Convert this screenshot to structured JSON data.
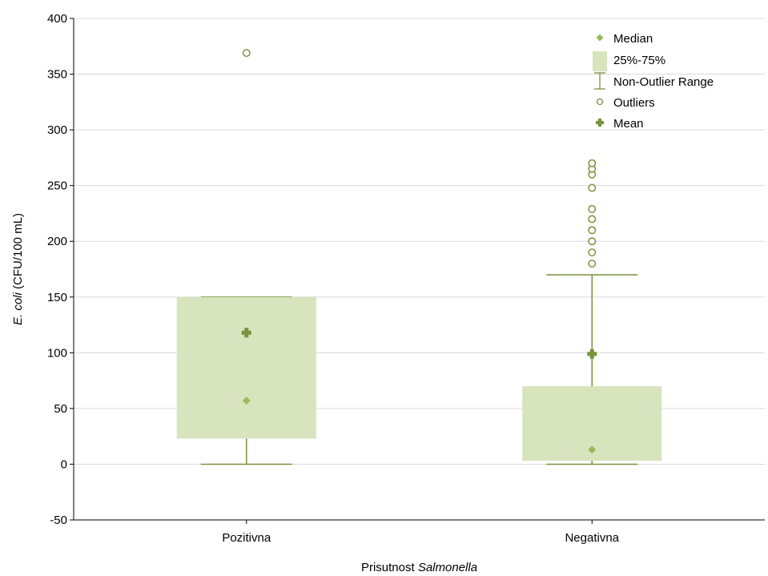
{
  "chart_data": {
    "type": "box",
    "xlabel_prefix": "Prisutnost ",
    "xlabel_italic": "Salmonella",
    "ylabel_italic": "E. coli",
    "ylabel_rest": " (CFU/100 mL)",
    "ylim": [
      -50,
      400
    ],
    "yticks": [
      -50,
      0,
      50,
      100,
      150,
      200,
      250,
      300,
      350,
      400
    ],
    "grid": true,
    "legend_position": "top-right",
    "categories": [
      "Pozitivna",
      "Negativna"
    ],
    "boxes": [
      {
        "category": "Pozitivna",
        "q1": 23,
        "q3": 150,
        "median": 57,
        "mean": 118,
        "whisker_low": 0,
        "whisker_high": 150,
        "outliers": [
          369
        ]
      },
      {
        "category": "Negativna",
        "q1": 3,
        "q3": 70,
        "median": 13,
        "mean": 99,
        "whisker_low": 0,
        "whisker_high": 170,
        "outliers": [
          180,
          190,
          200,
          210,
          220,
          229,
          248,
          260,
          265,
          270
        ]
      }
    ],
    "legend": {
      "median": "Median",
      "box": "25%-75%",
      "range": "Non-Outlier Range",
      "outliers": "Outliers",
      "mean": "Mean"
    },
    "colors": {
      "box_fill": "#d7e4bd",
      "line": "#77933c",
      "median_marker": "#9bbb59",
      "mean_marker": "#77933c",
      "grid": "#d9d9d9",
      "axis": "#000000"
    }
  }
}
